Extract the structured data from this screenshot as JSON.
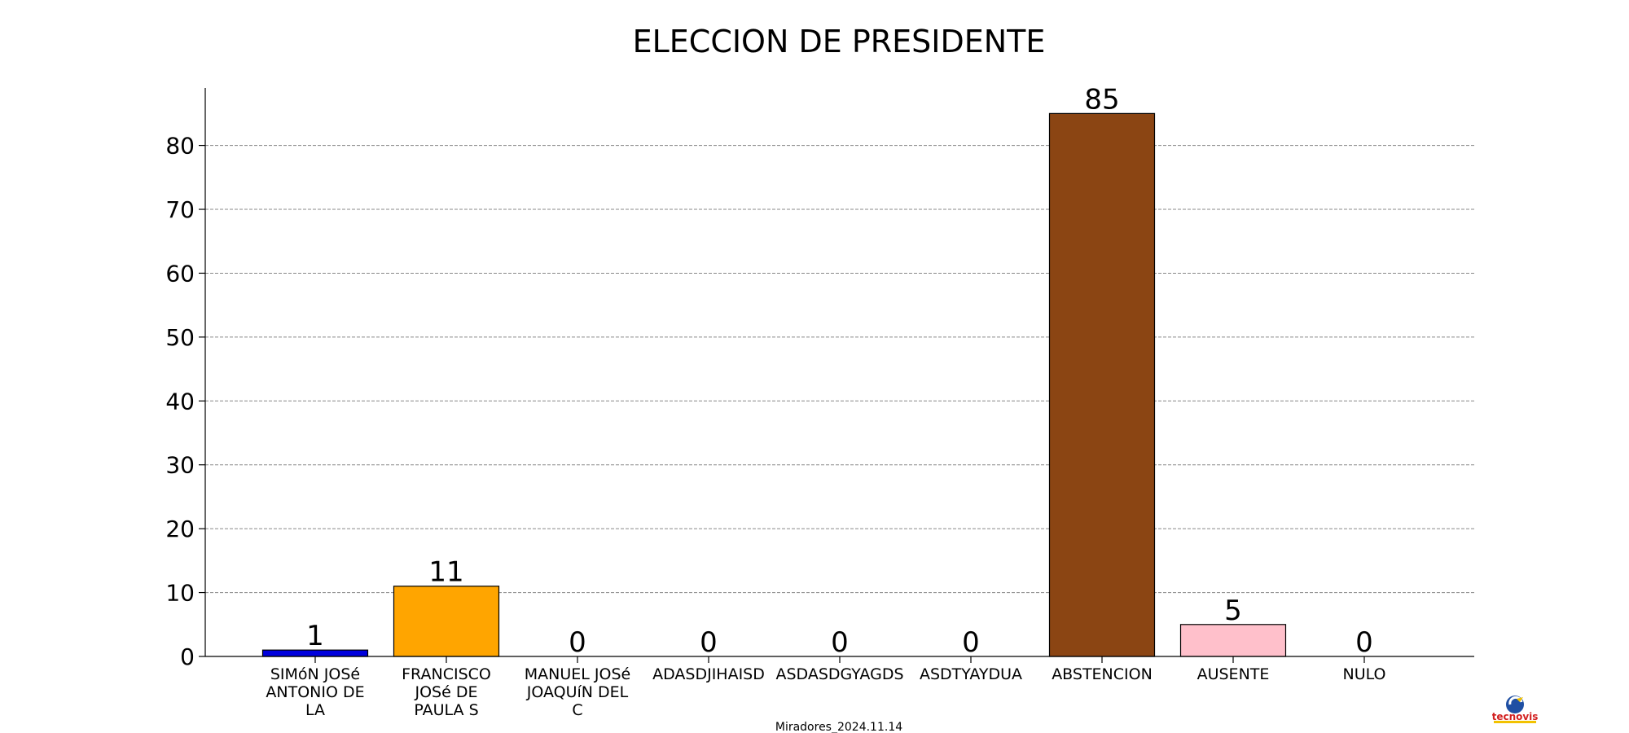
{
  "chart_data": {
    "type": "bar",
    "title": "ELECCION DE PRESIDENTE",
    "categories": [
      [
        "SIMóN JOSé",
        "ANTONIO DE",
        "LA"
      ],
      [
        "FRANCISCO",
        "JOSé DE",
        "PAULA S"
      ],
      [
        "MANUEL JOSé",
        "JOAQUíN DEL",
        "C"
      ],
      [
        "ADASDJIHAISD"
      ],
      [
        "ASDASDGYAGDS"
      ],
      [
        "ASDTYAYDUA"
      ],
      [
        "ABSTENCION"
      ],
      [
        "AUSENTE"
      ],
      [
        "NULO"
      ]
    ],
    "values": [
      1,
      11,
      0,
      0,
      0,
      0,
      85,
      5,
      0
    ],
    "colors": [
      "#0000dd",
      "#ffa500",
      "#ffffff",
      "#ffffff",
      "#ffffff",
      "#ffffff",
      "#8b4513",
      "#ffc0cb",
      "#ffffff"
    ],
    "ylim": [
      0,
      89
    ],
    "yticks": [
      0,
      10,
      20,
      30,
      40,
      50,
      60,
      70,
      80
    ],
    "grid": true,
    "xlabel": "",
    "ylabel": ""
  },
  "footer": {
    "caption": "Miradores_2024.11.14"
  },
  "logo": {
    "icon": "tecnovis-logo-icon",
    "text": "tecnovis"
  }
}
